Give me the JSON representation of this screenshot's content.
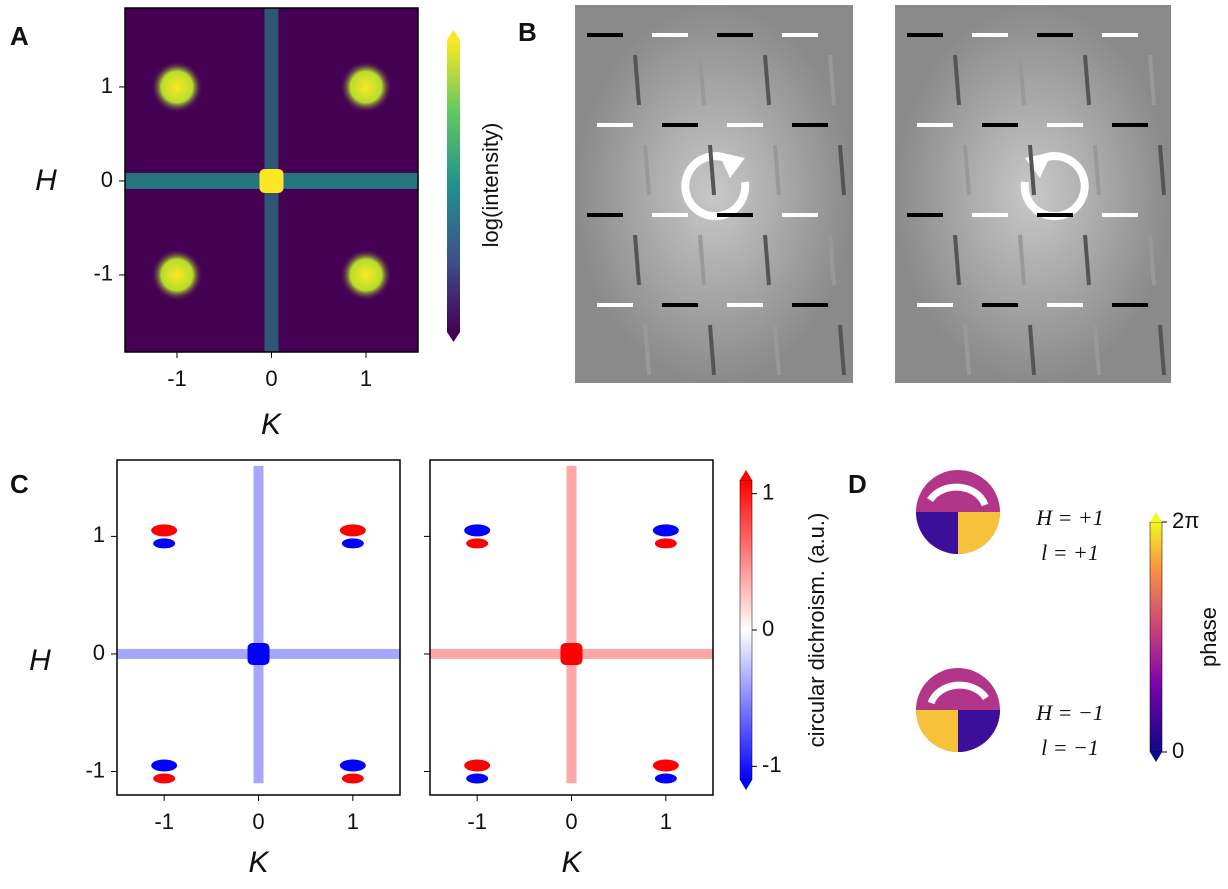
{
  "panels": {
    "A": {
      "label": "A",
      "xlabel": "K",
      "ylabel": "H",
      "xlim": [
        -1.55,
        1.55
      ],
      "ylim": [
        -1.82,
        1.84
      ],
      "xticks": [
        -1,
        0,
        1
      ],
      "yticks": [
        1,
        0,
        -1
      ],
      "colorbar_label": "log(intensity)"
    },
    "B": {
      "label": "B"
    },
    "C": {
      "label": "C",
      "xlabel": "K",
      "ylabel": "H",
      "xlim": [
        -1.5,
        1.5
      ],
      "ylim": [
        -1.2,
        1.65
      ],
      "xticks": [
        -1,
        0,
        1
      ],
      "yticks": [
        1,
        0,
        -1
      ],
      "colorbar_label": "circular dichroism. (a.u.)",
      "clim": [
        -1.1,
        1.1
      ],
      "colorbar_ticks": [
        1,
        0,
        -1
      ]
    },
    "D": {
      "label": "D",
      "annotations": [
        "H = +1",
        "l = +1",
        "H = −1",
        "l = −1"
      ],
      "colorbar_label": "phase",
      "clim": [
        0,
        6.283
      ],
      "colorbar_ticks": [
        {
          "value": 6.283,
          "label": "2π"
        },
        0
      ]
    }
  }
}
